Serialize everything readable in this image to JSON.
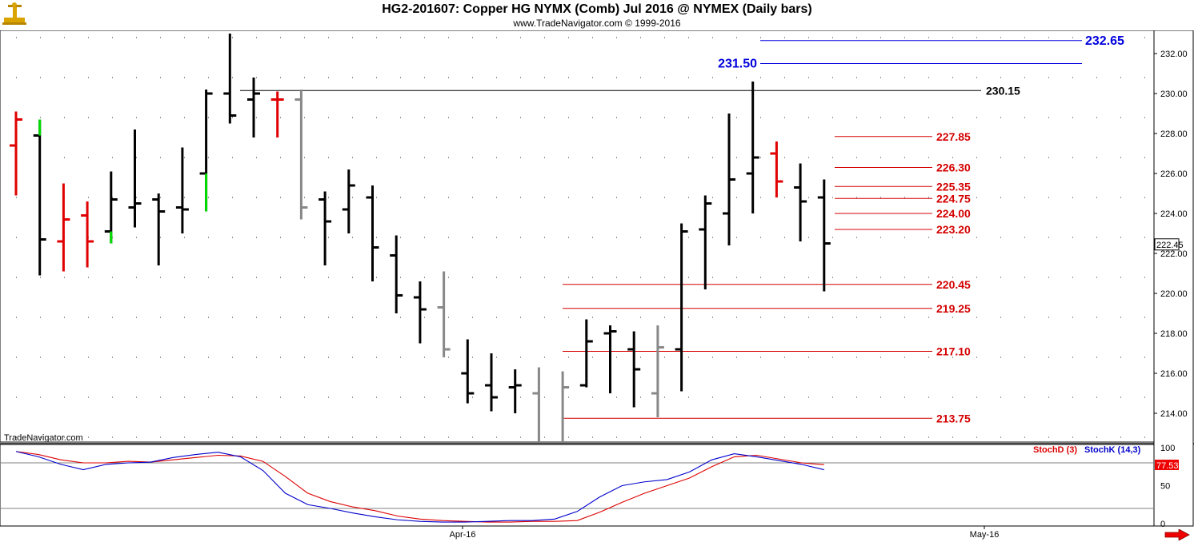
{
  "header": {
    "title": "HG2-201607:  Copper HG NYMX (Comb) Jul 2016 @ NYMEX  (Daily bars)",
    "subtitle": "www.TradeNavigator.com © 1999-2016"
  },
  "watermark": "TradeNavigator.com",
  "colors": {
    "up": "#000000",
    "down_red": "#e00000",
    "up_green": "#00dd00",
    "neutral_gray": "#888888",
    "level_red": "#d40000",
    "level_blue": "#0000dd",
    "stoch_d": "#dd0000",
    "stoch_k": "#0000cc",
    "grid": "#808080"
  },
  "chart_data": [
    {
      "type": "ohlc",
      "title": "HG2-201607:  Copper HG NYMX (Comb) Jul 2016 @ NYMEX  (Daily bars)",
      "ylim": [
        212.6,
        233.5
      ],
      "y_ticks": [
        "232.00",
        "230.00",
        "228.00",
        "226.00",
        "224.00",
        "222.00",
        "220.00",
        "218.00",
        "216.00",
        "214.00"
      ],
      "x_ticks": [
        "Apr-16",
        "May-16"
      ],
      "last_price_label": "222.45",
      "last_price": 222.45,
      "bars": [
        {
          "o": 227.4,
          "h": 229.1,
          "l": 224.9,
          "c": 228.7,
          "color": "red"
        },
        {
          "o": 227.9,
          "h": 228.7,
          "l": 220.9,
          "c": 222.7,
          "color": "black"
        },
        {
          "o": 222.6,
          "h": 225.5,
          "l": 221.1,
          "c": 223.7,
          "color": "red"
        },
        {
          "o": 223.9,
          "h": 224.6,
          "l": 221.3,
          "c": 222.6,
          "color": "red"
        },
        {
          "o": 223.1,
          "h": 226.1,
          "l": 222.5,
          "c": 224.7,
          "color": "black"
        },
        {
          "o": 224.3,
          "h": 228.2,
          "l": 223.3,
          "c": 224.5,
          "color": "black"
        },
        {
          "o": 224.7,
          "h": 225.0,
          "l": 221.4,
          "c": 224.1,
          "color": "black"
        },
        {
          "o": 224.3,
          "h": 227.3,
          "l": 223.0,
          "c": 224.2,
          "color": "black"
        },
        {
          "o": 226.0,
          "h": 230.2,
          "l": 224.1,
          "c": 230.0,
          "color": "black"
        },
        {
          "o": 230.0,
          "h": 233.0,
          "l": 228.5,
          "c": 228.9,
          "color": "black"
        },
        {
          "o": 229.7,
          "h": 230.8,
          "l": 227.8,
          "c": 230.0,
          "color": "black"
        },
        {
          "o": 229.7,
          "h": 230.1,
          "l": 227.8,
          "c": 229.7,
          "color": "red"
        },
        {
          "o": 229.7,
          "h": 230.2,
          "l": 223.7,
          "c": 224.3,
          "color": "gray"
        },
        {
          "o": 224.7,
          "h": 225.1,
          "l": 221.4,
          "c": 223.6,
          "color": "black"
        },
        {
          "o": 224.2,
          "h": 226.2,
          "l": 223.0,
          "c": 225.4,
          "color": "black"
        },
        {
          "o": 224.8,
          "h": 225.4,
          "l": 220.6,
          "c": 222.3,
          "color": "black"
        },
        {
          "o": 221.9,
          "h": 222.9,
          "l": 219.0,
          "c": 219.9,
          "color": "black"
        },
        {
          "o": 219.8,
          "h": 220.6,
          "l": 217.5,
          "c": 219.2,
          "color": "black"
        },
        {
          "o": 219.3,
          "h": 221.1,
          "l": 216.8,
          "c": 217.2,
          "color": "gray"
        },
        {
          "o": 216.0,
          "h": 217.7,
          "l": 214.5,
          "c": 215.0,
          "color": "black"
        },
        {
          "o": 215.4,
          "h": 217.0,
          "l": 214.1,
          "c": 214.8,
          "color": "black"
        },
        {
          "o": 215.3,
          "h": 216.2,
          "l": 214.0,
          "c": 215.4,
          "color": "black"
        },
        {
          "o": 215.0,
          "h": 216.3,
          "l": 212.6,
          "c": null,
          "color": "gray"
        },
        {
          "o": null,
          "h": 216.1,
          "l": 212.6,
          "c": 215.3,
          "color": "gray"
        },
        {
          "o": 215.4,
          "h": 218.7,
          "l": 215.3,
          "c": 217.6,
          "color": "black"
        },
        {
          "o": 218.0,
          "h": 218.4,
          "l": 215.0,
          "c": 218.1,
          "color": "black"
        },
        {
          "o": 217.2,
          "h": 218.1,
          "l": 214.3,
          "c": 216.2,
          "color": "black"
        },
        {
          "o": 215.0,
          "h": 218.4,
          "l": 213.8,
          "c": 217.3,
          "color": "gray"
        },
        {
          "o": 217.2,
          "h": 223.5,
          "l": 215.1,
          "c": 223.1,
          "color": "black"
        },
        {
          "o": 223.2,
          "h": 224.9,
          "l": 220.2,
          "c": 224.5,
          "color": "black"
        },
        {
          "o": 224.0,
          "h": 229.0,
          "l": 222.4,
          "c": 225.7,
          "color": "black"
        },
        {
          "o": 226.0,
          "h": 230.6,
          "l": 224.0,
          "c": 226.8,
          "color": "black"
        },
        {
          "o": 227.0,
          "h": 227.6,
          "l": 224.8,
          "c": 225.6,
          "color": "red"
        },
        {
          "o": 225.3,
          "h": 226.5,
          "l": 222.6,
          "c": 224.6,
          "color": "black"
        },
        {
          "o": 224.8,
          "h": 225.7,
          "l": 220.1,
          "c": 222.5,
          "color": "black"
        }
      ],
      "levels": [
        {
          "label": "232.65",
          "value": 232.65,
          "color": "blue"
        },
        {
          "label": "231.50",
          "value": 231.5,
          "color": "blue"
        },
        {
          "label": "230.15",
          "value": 230.15,
          "color": "black"
        },
        {
          "label": "227.85",
          "value": 227.85,
          "color": "red"
        },
        {
          "label": "226.30",
          "value": 226.3,
          "color": "red"
        },
        {
          "label": "225.35",
          "value": 225.35,
          "color": "red"
        },
        {
          "label": "224.75",
          "value": 224.75,
          "color": "red"
        },
        {
          "label": "224.00",
          "value": 224.0,
          "color": "red"
        },
        {
          "label": "223.20",
          "value": 223.2,
          "color": "red"
        },
        {
          "label": "220.45",
          "value": 220.45,
          "color": "red"
        },
        {
          "label": "219.25",
          "value": 219.25,
          "color": "red"
        },
        {
          "label": "217.10",
          "value": 217.1,
          "color": "red"
        },
        {
          "label": "213.75",
          "value": 213.75,
          "color": "red"
        }
      ]
    },
    {
      "type": "line",
      "ylim": [
        0,
        100
      ],
      "y_ticks": [
        "100",
        "50",
        "0"
      ],
      "reference_lines": [
        80,
        20
      ],
      "last_value_label": "77.53",
      "series": [
        {
          "name": "StochD (3)",
          "color": "red",
          "values": [
            95,
            91,
            84,
            80,
            80,
            82,
            81,
            84,
            87,
            90,
            89,
            82,
            62,
            40,
            29,
            22,
            17,
            10,
            6,
            4,
            3,
            2,
            2,
            3,
            3,
            4,
            15,
            28,
            40,
            50,
            60,
            75,
            88,
            90,
            85,
            80,
            77.53
          ]
        },
        {
          "name": "StochK (14,3)",
          "color": "blue",
          "values": [
            95,
            88,
            78,
            71,
            78,
            80,
            81,
            87,
            91,
            94,
            88,
            70,
            40,
            25,
            20,
            14,
            9,
            5,
            3,
            2,
            2,
            3,
            4,
            4,
            6,
            16,
            35,
            50,
            55,
            58,
            68,
            84,
            92,
            88,
            83,
            78,
            71
          ]
        }
      ]
    }
  ]
}
